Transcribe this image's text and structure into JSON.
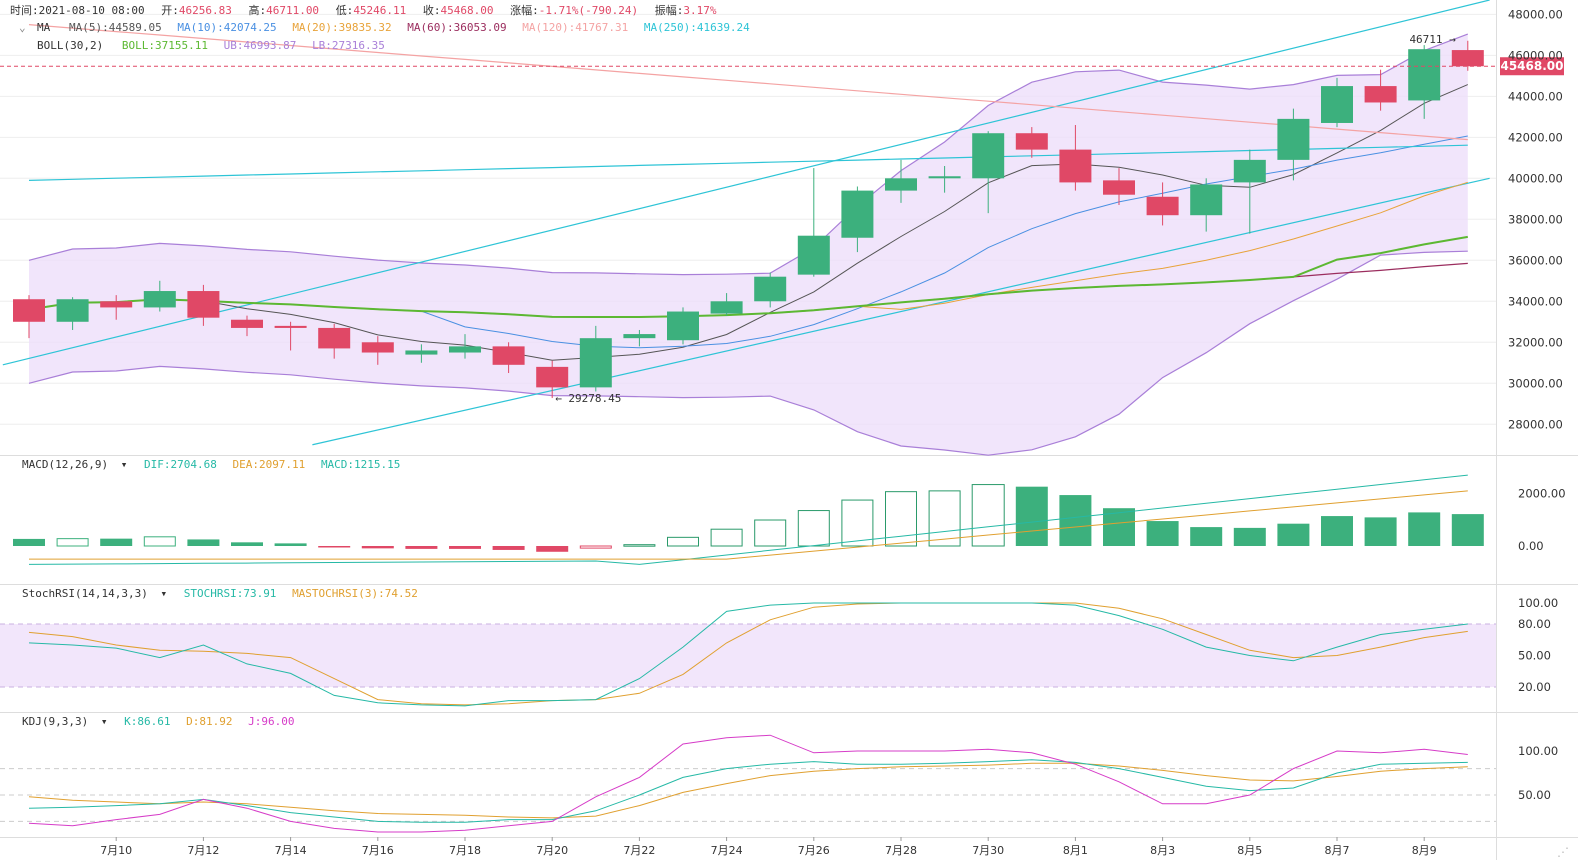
{
  "header": {
    "time_label": "时间:",
    "time": "2021-08-10 08:00",
    "open_label": "开:",
    "open": "46256.83",
    "high_label": "高:",
    "high": "46711.00",
    "low_label": "低:",
    "low": "45246.11",
    "close_label": "收:",
    "close": "45468.00",
    "chg_label": "涨幅:",
    "chg": "-1.71%(-790.24)",
    "amp_label": "振幅:",
    "amp": "3.17%"
  },
  "ma_legend": {
    "toggle": "MA",
    "items": [
      {
        "text": "MA(5):44589.05",
        "color": "#555555"
      },
      {
        "text": "MA(10):42074.25",
        "color": "#4a90e2"
      },
      {
        "text": "MA(20):39835.32",
        "color": "#e8a33a"
      },
      {
        "text": "MA(60):36053.09",
        "color": "#9b2d5e"
      },
      {
        "text": "MA(120):41767.31",
        "color": "#f4a3a3"
      },
      {
        "text": "MA(250):41639.24",
        "color": "#2ec4d6"
      }
    ]
  },
  "boll_legend": {
    "name": "BOLL(30,2)",
    "items": [
      {
        "text": "BOLL:37155.11",
        "color": "#5cb832"
      },
      {
        "text": "UB:46993.87",
        "color": "#a97fd8"
      },
      {
        "text": "LB:27316.35",
        "color": "#a97fd8"
      }
    ]
  },
  "macd_legend": {
    "name": "MACD(12,26,9)",
    "items": [
      {
        "text": "DIF:2704.68",
        "color": "#26b9a6"
      },
      {
        "text": "DEA:2097.11",
        "color": "#e0a030"
      },
      {
        "text": "MACD:1215.15",
        "color": "#26b9a6"
      }
    ]
  },
  "stoch_legend": {
    "name": "StochRSI(14,14,3,3)",
    "items": [
      {
        "text": "STOCHRSI:73.91",
        "color": "#26b9a6"
      },
      {
        "text": "MASTOCHRSI(3):74.52",
        "color": "#e0a030"
      }
    ]
  },
  "kdj_legend": {
    "name": "KDJ(9,3,3)",
    "items": [
      {
        "text": "K:86.61",
        "color": "#26b9a6"
      },
      {
        "text": "D:81.92",
        "color": "#e0a030"
      },
      {
        "text": "J:96.00",
        "color": "#d63cc8"
      }
    ]
  },
  "colors": {
    "up": "#3cb07d",
    "down": "#e04866",
    "grid": "#eeeeee"
  },
  "chart_data": {
    "type": "candlestick",
    "x_tick_labels": [
      "7月10",
      "7月12",
      "7月14",
      "7月16",
      "7月18",
      "7月20",
      "7月22",
      "7月24",
      "7月26",
      "7月28",
      "7月30",
      "8月1",
      "8月3",
      "8月5",
      "8月7",
      "8月9"
    ],
    "candles": [
      {
        "o": 34100,
        "h": 34300,
        "l": 32200,
        "c": 33000
      },
      {
        "o": 33000,
        "h": 34200,
        "l": 32600,
        "c": 34100
      },
      {
        "o": 34000,
        "h": 34300,
        "l": 33100,
        "c": 33700
      },
      {
        "o": 33700,
        "h": 35000,
        "l": 33500,
        "c": 34500
      },
      {
        "o": 34500,
        "h": 34800,
        "l": 32800,
        "c": 33200
      },
      {
        "o": 33100,
        "h": 33300,
        "l": 32300,
        "c": 32700
      },
      {
        "o": 32800,
        "h": 33000,
        "l": 31600,
        "c": 32700
      },
      {
        "o": 32700,
        "h": 32900,
        "l": 31200,
        "c": 31700
      },
      {
        "o": 32000,
        "h": 32300,
        "l": 30900,
        "c": 31500
      },
      {
        "o": 31400,
        "h": 31900,
        "l": 31000,
        "c": 31600
      },
      {
        "o": 31500,
        "h": 32400,
        "l": 31200,
        "c": 31800
      },
      {
        "o": 31800,
        "h": 32000,
        "l": 30500,
        "c": 30900
      },
      {
        "o": 30800,
        "h": 31100,
        "l": 29278.45,
        "c": 29800
      },
      {
        "o": 29800,
        "h": 32800,
        "l": 29600,
        "c": 32200
      },
      {
        "o": 32200,
        "h": 32600,
        "l": 31800,
        "c": 32400
      },
      {
        "o": 32100,
        "h": 33700,
        "l": 31900,
        "c": 33500
      },
      {
        "o": 33400,
        "h": 34400,
        "l": 33300,
        "c": 34000
      },
      {
        "o": 34000,
        "h": 35400,
        "l": 33700,
        "c": 35200
      },
      {
        "o": 35300,
        "h": 40500,
        "l": 35200,
        "c": 37200
      },
      {
        "o": 37100,
        "h": 39600,
        "l": 36400,
        "c": 39400
      },
      {
        "o": 39400,
        "h": 40900,
        "l": 38800,
        "c": 40000
      },
      {
        "o": 40000,
        "h": 40600,
        "l": 39300,
        "c": 40100
      },
      {
        "o": 40000,
        "h": 42300,
        "l": 38300,
        "c": 42200
      },
      {
        "o": 42200,
        "h": 42500,
        "l": 41000,
        "c": 41400
      },
      {
        "o": 41400,
        "h": 42600,
        "l": 39400,
        "c": 39800
      },
      {
        "o": 39900,
        "h": 40500,
        "l": 38700,
        "c": 39200
      },
      {
        "o": 39100,
        "h": 39800,
        "l": 37700,
        "c": 38200
      },
      {
        "o": 38200,
        "h": 40000,
        "l": 37400,
        "c": 39700
      },
      {
        "o": 39800,
        "h": 41400,
        "l": 37300,
        "c": 40900
      },
      {
        "o": 40900,
        "h": 43400,
        "l": 39900,
        "c": 42900
      },
      {
        "o": 42700,
        "h": 44900,
        "l": 42500,
        "c": 44500
      },
      {
        "o": 44500,
        "h": 45300,
        "l": 43300,
        "c": 43700
      },
      {
        "o": 43800,
        "h": 46500,
        "l": 42900,
        "c": 46300
      },
      {
        "o": 46256.83,
        "h": 46711,
        "l": 45246.11,
        "c": 45468
      }
    ],
    "y_ticks": [
      28000,
      30000,
      32000,
      34000,
      36000,
      38000,
      40000,
      42000,
      44000,
      46000,
      48000
    ],
    "ylim": [
      26500,
      48700
    ],
    "current_price": 45468.0,
    "current_price_label": "45468.00",
    "max_label": "46711",
    "min_label": "29278.45",
    "macd_ticks": [
      "0.00",
      "2000.00"
    ],
    "macd_hist": [
      270,
      280,
      280,
      350,
      250,
      140,
      100,
      -20,
      -90,
      -110,
      -110,
      -150,
      -220,
      -80,
      50,
      330,
      640,
      990,
      1350,
      1750,
      2070,
      2100,
      2340,
      2260,
      1940,
      1440,
      950,
      720,
      690,
      850,
      1140,
      1090,
      1280,
      1215
    ],
    "stoch_ticks": [
      "20.00",
      "50.00",
      "80.00",
      "100.00"
    ],
    "kdj_ticks": [
      "50.00",
      "100.00"
    ]
  }
}
